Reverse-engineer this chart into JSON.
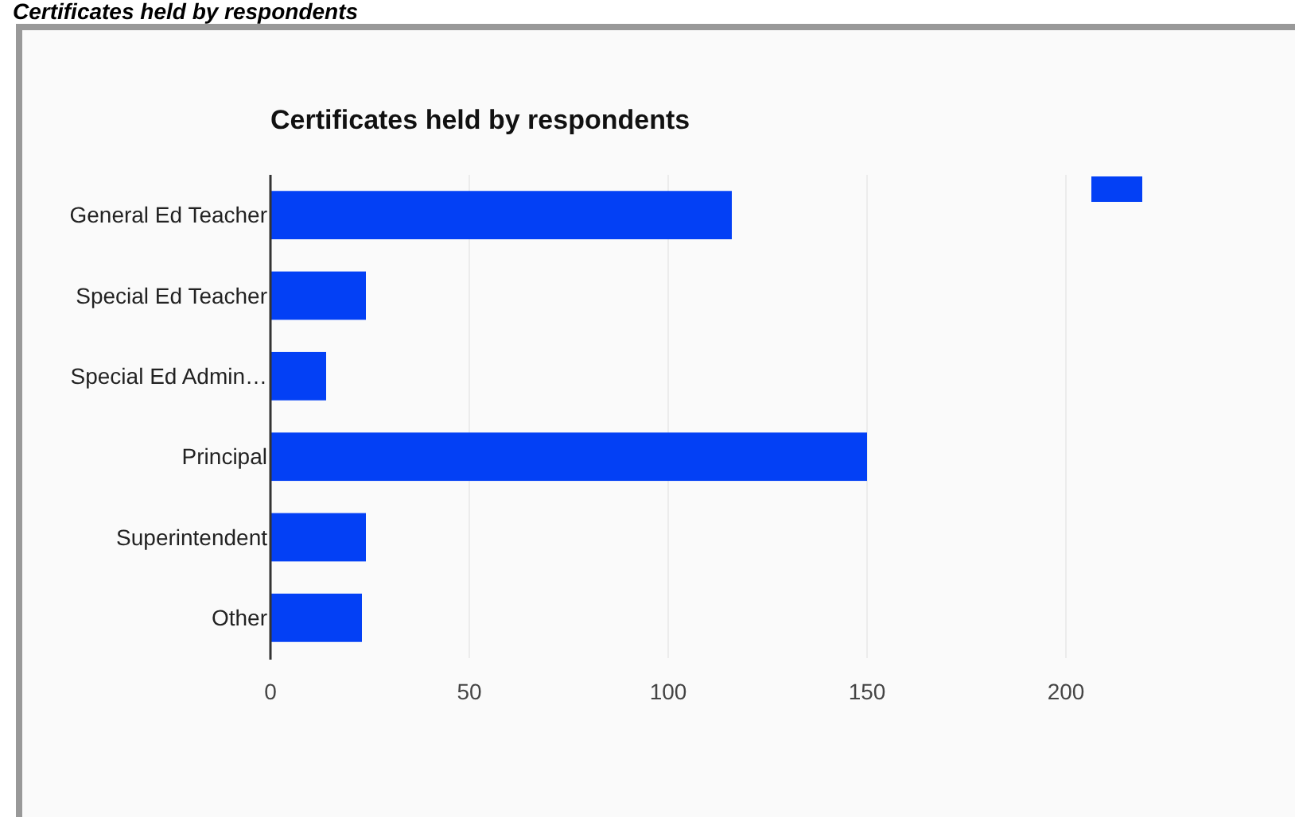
{
  "chart_data": {
    "type": "bar",
    "orientation": "horizontal",
    "title": "Certificates held by respondents",
    "annotations": [
      "Certificates held by respondents"
    ],
    "categories": [
      "General Ed Teacher",
      "Special Ed Teacher",
      "Special Ed Admin…",
      "Principal",
      "Superintendent",
      "Other"
    ],
    "values": [
      116,
      24,
      14,
      150,
      24,
      23
    ],
    "color": "#0340f5",
    "xlim": [
      0,
      200
    ],
    "xticks": [
      0,
      50,
      100,
      150,
      200
    ],
    "grid": "x"
  }
}
